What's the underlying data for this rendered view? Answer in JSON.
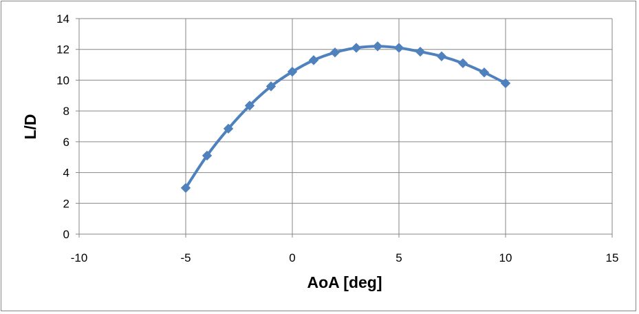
{
  "chart_data": {
    "type": "scatter",
    "title": "",
    "xlabel": "AoA [deg]",
    "ylabel": "L/D",
    "xlim": [
      -10,
      15
    ],
    "ylim": [
      0,
      14
    ],
    "xticks": [
      -10,
      -5,
      0,
      5,
      10,
      15
    ],
    "yticks": [
      0,
      2,
      4,
      6,
      8,
      10,
      12,
      14
    ],
    "grid": true,
    "legend": "none",
    "series": [
      {
        "color": "#4F81BD",
        "marker": "diamond",
        "line": "smooth",
        "x": [
          -5,
          -4,
          -3,
          -2,
          -1,
          0,
          1,
          2,
          3,
          4,
          5,
          6,
          7,
          8,
          9,
          10
        ],
        "y": [
          3.0,
          5.1,
          6.85,
          8.35,
          9.6,
          10.55,
          11.3,
          11.8,
          12.1,
          12.2,
          12.1,
          11.85,
          11.55,
          11.1,
          10.5,
          9.8
        ]
      }
    ]
  }
}
